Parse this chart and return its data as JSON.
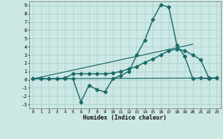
{
  "xlabel": "Humidex (Indice chaleur)",
  "bg_color": "#cce8e5",
  "grid_color": "#aacfcc",
  "line_color": "#1a6b68",
  "xlim": [
    -0.5,
    23.5
  ],
  "ylim": [
    -3.5,
    9.5
  ],
  "xticks": [
    0,
    1,
    2,
    3,
    4,
    5,
    6,
    7,
    8,
    9,
    10,
    11,
    12,
    13,
    14,
    15,
    16,
    17,
    18,
    19,
    20,
    21,
    22,
    23
  ],
  "yticks": [
    -3,
    -2,
    -1,
    0,
    1,
    2,
    3,
    4,
    5,
    6,
    7,
    8,
    9
  ],
  "series": [
    {
      "x": [
        0,
        1,
        2,
        3,
        4,
        5,
        6,
        7,
        8,
        9,
        10,
        11,
        12,
        13,
        14,
        15,
        16,
        17,
        18,
        19,
        20,
        21,
        22,
        23
      ],
      "y": [
        0.1,
        0.1,
        0.1,
        0.1,
        0.1,
        0.1,
        -2.7,
        -0.7,
        -1.2,
        -1.5,
        0.1,
        0.5,
        1.0,
        3.0,
        4.8,
        7.3,
        9.1,
        8.8,
        4.2,
        2.8,
        0.1,
        0.2,
        0.1,
        0.2
      ],
      "marker": "D",
      "markersize": 2.5,
      "linewidth": 1.1,
      "zorder": 4
    },
    {
      "x": [
        0,
        1,
        2,
        3,
        4,
        5,
        6,
        7,
        8,
        9,
        10,
        11,
        12,
        13,
        14,
        15,
        16,
        17,
        18,
        19,
        20,
        21,
        22,
        23
      ],
      "y": [
        0.1,
        0.1,
        0.1,
        0.1,
        0.2,
        0.7,
        0.7,
        0.7,
        0.7,
        0.7,
        0.8,
        1.0,
        1.3,
        1.6,
        2.1,
        2.5,
        3.0,
        3.5,
        3.7,
        3.5,
        3.0,
        2.4,
        0.2,
        0.2
      ],
      "marker": "D",
      "markersize": 2.5,
      "linewidth": 1.1,
      "zorder": 3
    },
    {
      "x": [
        0.0,
        23.0
      ],
      "y": [
        0.1,
        0.2
      ],
      "marker": null,
      "markersize": 0,
      "linewidth": 0.9,
      "zorder": 2
    },
    {
      "x": [
        0.0,
        20.0
      ],
      "y": [
        0.1,
        4.3
      ],
      "marker": null,
      "markersize": 0,
      "linewidth": 0.9,
      "zorder": 2
    }
  ]
}
